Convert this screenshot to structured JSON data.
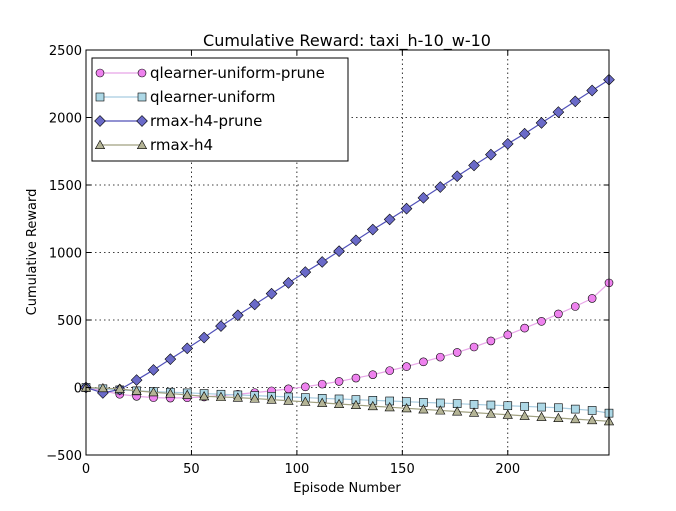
{
  "chart_data": {
    "type": "line",
    "title": "Cumulative Reward: taxi_h-10_w-10",
    "xlabel": "Episode Number",
    "ylabel": "Cumulative Reward",
    "xlim": [
      0,
      248
    ],
    "ylim": [
      -500,
      2500
    ],
    "xticks": [
      0,
      50,
      100,
      150,
      200
    ],
    "yticks": [
      -500,
      0,
      500,
      1000,
      1500,
      2000,
      2500
    ],
    "xtick_labels": [
      "0",
      "50",
      "100",
      "150",
      "200"
    ],
    "ytick_labels": [
      "−500",
      "0",
      "500",
      "1000",
      "1500",
      "2000",
      "2500"
    ],
    "grid": true,
    "legend_position": "top-left",
    "x": [
      0,
      8,
      16,
      24,
      32,
      40,
      48,
      56,
      64,
      72,
      80,
      88,
      96,
      104,
      112,
      120,
      128,
      136,
      144,
      152,
      160,
      168,
      176,
      184,
      192,
      200,
      208,
      216,
      224,
      232,
      240,
      248
    ],
    "series": [
      {
        "name": "qlearner-uniform-prune",
        "marker": "circle",
        "color": "#ee82ee",
        "line_color": "#e8a5e8",
        "values": [
          0,
          -25,
          -50,
          -65,
          -75,
          -78,
          -76,
          -70,
          -60,
          -50,
          -38,
          -25,
          -10,
          5,
          25,
          45,
          70,
          95,
          125,
          155,
          190,
          225,
          260,
          300,
          345,
          390,
          440,
          490,
          545,
          600,
          660,
          775
        ]
      },
      {
        "name": "qlearner-uniform",
        "marker": "square",
        "color": "#add8e6",
        "line_color": "#a8cce0",
        "values": [
          0,
          -10,
          -18,
          -25,
          -30,
          -35,
          -40,
          -45,
          -50,
          -55,
          -60,
          -65,
          -70,
          -75,
          -80,
          -85,
          -90,
          -95,
          -100,
          -105,
          -110,
          -115,
          -120,
          -125,
          -130,
          -135,
          -140,
          -145,
          -150,
          -160,
          -170,
          -190
        ]
      },
      {
        "name": "rmax-h4-prune",
        "marker": "diamond",
        "color": "#6a6ac8",
        "line_color": "#5050b8",
        "values": [
          0,
          -40,
          -15,
          55,
          130,
          210,
          290,
          370,
          455,
          535,
          615,
          695,
          775,
          855,
          930,
          1010,
          1090,
          1170,
          1245,
          1325,
          1405,
          1485,
          1565,
          1645,
          1725,
          1805,
          1880,
          1960,
          2040,
          2120,
          2200,
          2280
        ]
      },
      {
        "name": "rmax-h4",
        "marker": "triangle",
        "color": "#b4b496",
        "line_color": "#a0a080",
        "values": [
          0,
          -5,
          -10,
          -25,
          -35,
          -45,
          -55,
          -65,
          -70,
          -75,
          -82,
          -90,
          -98,
          -106,
          -114,
          -122,
          -130,
          -138,
          -146,
          -154,
          -162,
          -170,
          -178,
          -186,
          -194,
          -202,
          -210,
          -218,
          -226,
          -234,
          -242,
          -250
        ]
      }
    ]
  }
}
